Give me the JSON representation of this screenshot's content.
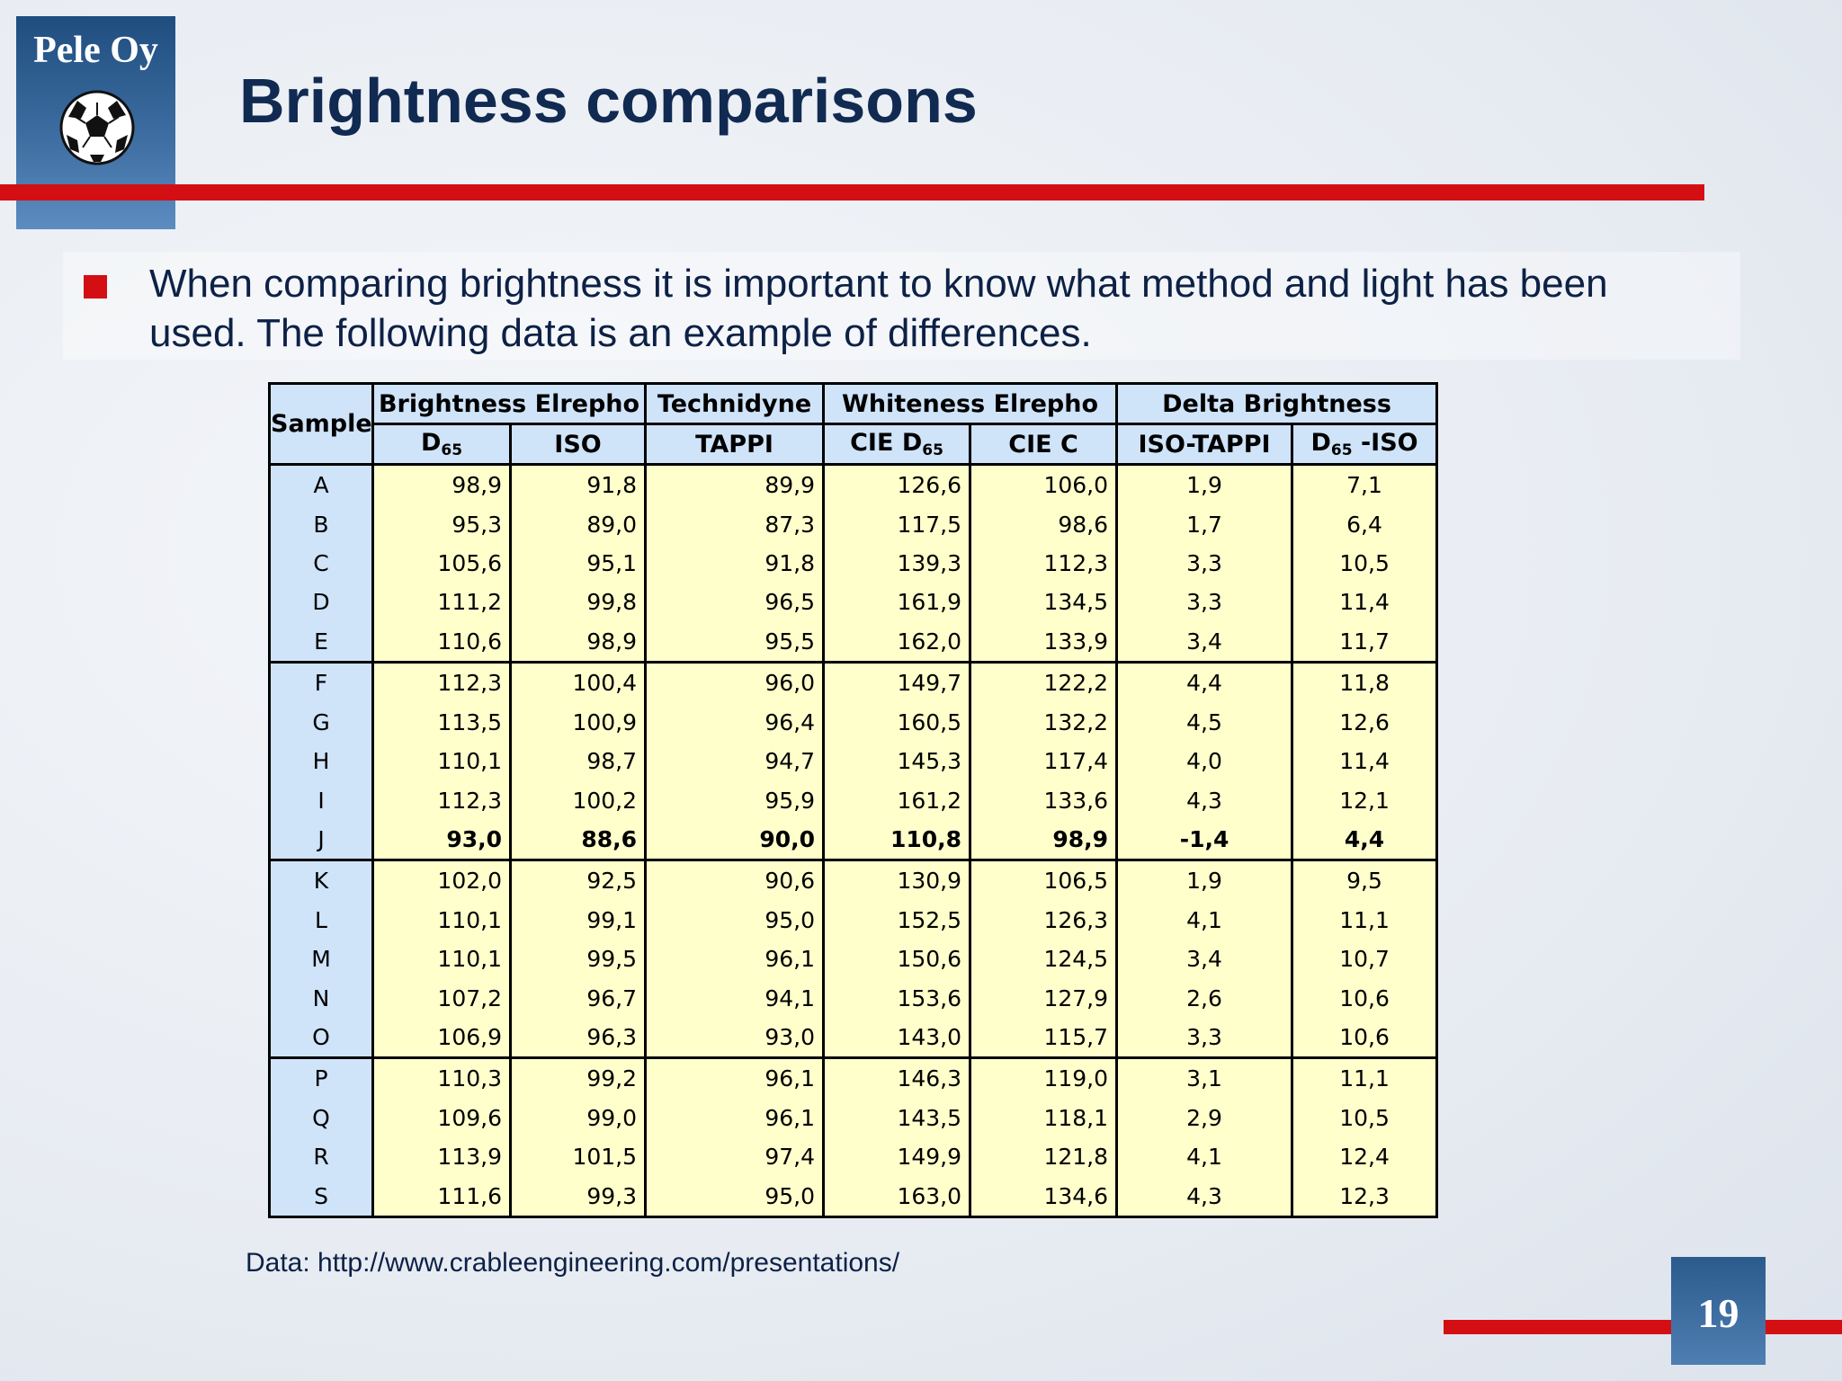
{
  "logo": {
    "text": "Pele Oy",
    "icon": "soccer-ball-icon"
  },
  "title": "Brightness comparisons",
  "bullet": "When comparing brightness it is important to know what method and light has been used.  The following data is an example of differences.",
  "table": {
    "sample_header": "Sample",
    "groups": [
      "Brightness Elrepho",
      "Technidyne",
      "Whiteness Elrepho",
      "Delta Brightness"
    ],
    "subheaders": {
      "d65_base": "D",
      "d65_sub": "65",
      "iso": "ISO",
      "tappi": "TAPPI",
      "cie_d65_base": "CIE D",
      "cie_d65_sub": "65",
      "cie_c": "CIE C",
      "iso_tappi": "ISO-TAPPI",
      "d65_iso_base": "D",
      "d65_iso_sub": "65",
      "d65_iso_suffix": " -ISO"
    },
    "rows": [
      {
        "s": "A",
        "d65": "98,9",
        "iso": "91,8",
        "tappi": "89,9",
        "cie_d65": "126,6",
        "cie_c": "106,0",
        "iso_tappi": "1,9",
        "d65_iso": "7,1"
      },
      {
        "s": "B",
        "d65": "95,3",
        "iso": "89,0",
        "tappi": "87,3",
        "cie_d65": "117,5",
        "cie_c": "98,6",
        "iso_tappi": "1,7",
        "d65_iso": "6,4"
      },
      {
        "s": "C",
        "d65": "105,6",
        "iso": "95,1",
        "tappi": "91,8",
        "cie_d65": "139,3",
        "cie_c": "112,3",
        "iso_tappi": "3,3",
        "d65_iso": "10,5"
      },
      {
        "s": "D",
        "d65": "111,2",
        "iso": "99,8",
        "tappi": "96,5",
        "cie_d65": "161,9",
        "cie_c": "134,5",
        "iso_tappi": "3,3",
        "d65_iso": "11,4"
      },
      {
        "s": "E",
        "d65": "110,6",
        "iso": "98,9",
        "tappi": "95,5",
        "cie_d65": "162,0",
        "cie_c": "133,9",
        "iso_tappi": "3,4",
        "d65_iso": "11,7"
      },
      {
        "s": "F",
        "d65": "112,3",
        "iso": "100,4",
        "tappi": "96,0",
        "cie_d65": "149,7",
        "cie_c": "122,2",
        "iso_tappi": "4,4",
        "d65_iso": "11,8"
      },
      {
        "s": "G",
        "d65": "113,5",
        "iso": "100,9",
        "tappi": "96,4",
        "cie_d65": "160,5",
        "cie_c": "132,2",
        "iso_tappi": "4,5",
        "d65_iso": "12,6"
      },
      {
        "s": "H",
        "d65": "110,1",
        "iso": "98,7",
        "tappi": "94,7",
        "cie_d65": "145,3",
        "cie_c": "117,4",
        "iso_tappi": "4,0",
        "d65_iso": "11,4"
      },
      {
        "s": "I",
        "d65": "112,3",
        "iso": "100,2",
        "tappi": "95,9",
        "cie_d65": "161,2",
        "cie_c": "133,6",
        "iso_tappi": "4,3",
        "d65_iso": "12,1"
      },
      {
        "s": "J",
        "d65": "93,0",
        "iso": "88,6",
        "tappi": "90,0",
        "cie_d65": "110,8",
        "cie_c": "98,9",
        "iso_tappi": "-1,4",
        "d65_iso": "4,4"
      },
      {
        "s": "K",
        "d65": "102,0",
        "iso": "92,5",
        "tappi": "90,6",
        "cie_d65": "130,9",
        "cie_c": "106,5",
        "iso_tappi": "1,9",
        "d65_iso": "9,5"
      },
      {
        "s": "L",
        "d65": "110,1",
        "iso": "99,1",
        "tappi": "95,0",
        "cie_d65": "152,5",
        "cie_c": "126,3",
        "iso_tappi": "4,1",
        "d65_iso": "11,1"
      },
      {
        "s": "M",
        "d65": "110,1",
        "iso": "99,5",
        "tappi": "96,1",
        "cie_d65": "150,6",
        "cie_c": "124,5",
        "iso_tappi": "3,4",
        "d65_iso": "10,7"
      },
      {
        "s": "N",
        "d65": "107,2",
        "iso": "96,7",
        "tappi": "94,1",
        "cie_d65": "153,6",
        "cie_c": "127,9",
        "iso_tappi": "2,6",
        "d65_iso": "10,6"
      },
      {
        "s": "O",
        "d65": "106,9",
        "iso": "96,3",
        "tappi": "93,0",
        "cie_d65": "143,0",
        "cie_c": "115,7",
        "iso_tappi": "3,3",
        "d65_iso": "10,6"
      },
      {
        "s": "P",
        "d65": "110,3",
        "iso": "99,2",
        "tappi": "96,1",
        "cie_d65": "146,3",
        "cie_c": "119,0",
        "iso_tappi": "3,1",
        "d65_iso": "11,1"
      },
      {
        "s": "Q",
        "d65": "109,6",
        "iso": "99,0",
        "tappi": "96,1",
        "cie_d65": "143,5",
        "cie_c": "118,1",
        "iso_tappi": "2,9",
        "d65_iso": "10,5"
      },
      {
        "s": "R",
        "d65": "113,9",
        "iso": "101,5",
        "tappi": "97,4",
        "cie_d65": "149,9",
        "cie_c": "121,8",
        "iso_tappi": "4,1",
        "d65_iso": "12,4"
      },
      {
        "s": "S",
        "d65": "111,6",
        "iso": "99,3",
        "tappi": "95,0",
        "cie_d65": "163,0",
        "cie_c": "134,6",
        "iso_tappi": "4,3",
        "d65_iso": "12,3"
      }
    ]
  },
  "footnote": "Data: http://www.crableengineering.com/presentations/",
  "page_number": "19",
  "colors": {
    "accent_red": "#d40f14",
    "title_navy": "#112a52",
    "header_blue": "#cfe3f9",
    "cell_yellow": "#ffffcc"
  }
}
